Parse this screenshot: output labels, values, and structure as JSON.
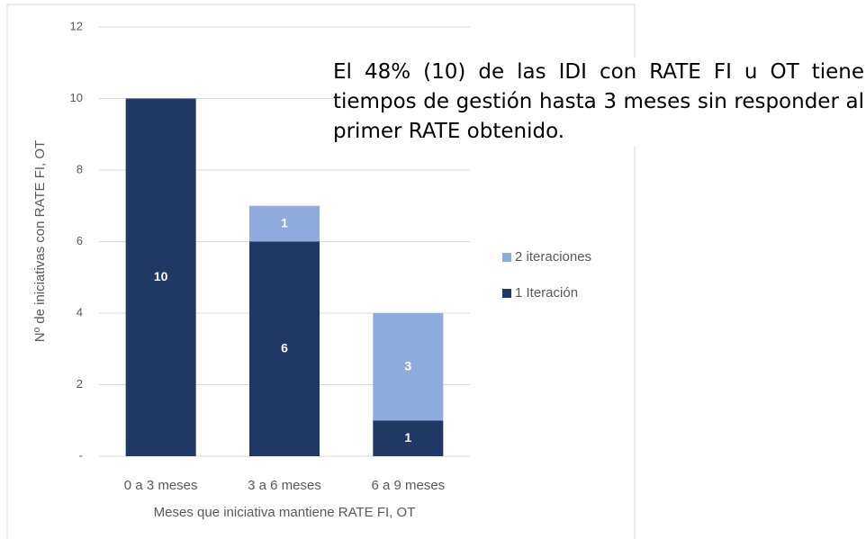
{
  "chart_data": {
    "type": "stacked_bar",
    "categories": [
      "0 a 3 meses",
      "3 a 6 meses",
      "6 a 9 meses"
    ],
    "series": [
      {
        "name": "1 Iteración",
        "color": "#1f3864",
        "values": [
          10,
          6,
          1
        ]
      },
      {
        "name": "2 iteraciones",
        "color": "#8faadc",
        "values": [
          null,
          1,
          3
        ]
      }
    ],
    "ylim": [
      0,
      12
    ],
    "yticks": [
      {
        "value": 0,
        "label": "-"
      },
      2,
      4,
      6,
      8,
      10,
      12
    ],
    "grid": true,
    "ylabel": "Nº de iniciativas con RATE FI, OT",
    "xlabel": "Meses que iniciativa mantiene RATE FI, OT",
    "legend": "right",
    "annotation": "El 48% (10) de las IDI con RATE FI u OT tiene tiempos de gestión hasta 3 meses sin responder al primer RATE obtenido."
  }
}
